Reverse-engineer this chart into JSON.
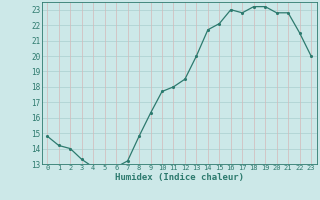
{
  "x": [
    0,
    1,
    2,
    3,
    4,
    5,
    6,
    7,
    8,
    9,
    10,
    11,
    12,
    13,
    14,
    15,
    16,
    17,
    18,
    19,
    20,
    21,
    22,
    23
  ],
  "y": [
    14.8,
    14.2,
    14.0,
    13.3,
    12.8,
    12.8,
    12.8,
    13.2,
    14.8,
    16.3,
    17.7,
    18.0,
    18.5,
    20.0,
    21.7,
    22.1,
    23.0,
    22.8,
    23.2,
    23.2,
    22.8,
    22.8,
    21.5,
    20.0
  ],
  "xlabel": "Humidex (Indice chaleur)",
  "ylim": [
    13,
    23.5
  ],
  "xlim": [
    -0.5,
    23.5
  ],
  "yticks": [
    13,
    14,
    15,
    16,
    17,
    18,
    19,
    20,
    21,
    22,
    23
  ],
  "xticks": [
    0,
    1,
    2,
    3,
    4,
    5,
    6,
    7,
    8,
    9,
    10,
    11,
    12,
    13,
    14,
    15,
    16,
    17,
    18,
    19,
    20,
    21,
    22,
    23
  ],
  "line_color": "#2d7a6e",
  "marker_color": "#2d7a6e",
  "bg_color": "#cce8e8",
  "grid_h_color": "#aacfcf",
  "grid_v_color": "#d4b8b8"
}
